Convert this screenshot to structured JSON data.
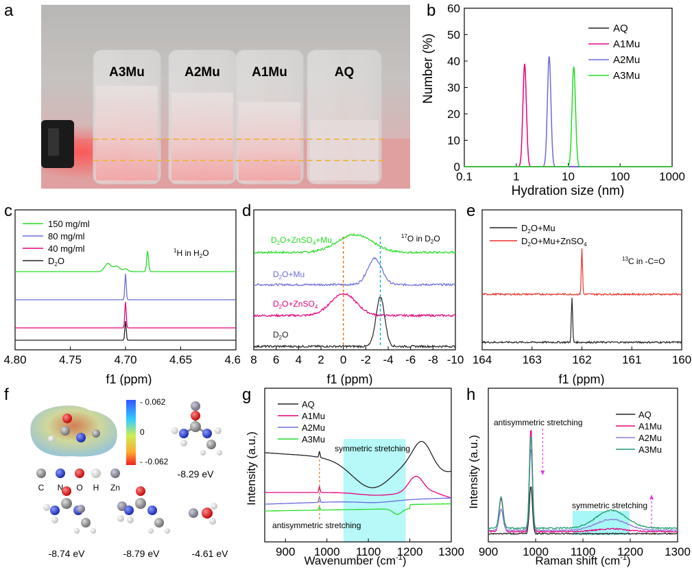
{
  "labels": {
    "a": "a",
    "b": "b",
    "c": "c",
    "d": "d",
    "e": "e",
    "f": "f",
    "g": "g",
    "h": "h"
  },
  "photo": {
    "vials": [
      "A3Mu",
      "A2Mu",
      "A1Mu",
      "AQ"
    ]
  },
  "chart_data": [
    {
      "panel": "b",
      "type": "line",
      "xlabel": "Hydration size (nm)",
      "ylabel": "Number (%)",
      "xscale": "log",
      "xlim": [
        0.1,
        1000
      ],
      "ylim": [
        0,
        60
      ],
      "xticks": [
        "0.1",
        "1",
        "10",
        "100",
        "1000"
      ],
      "yticks": [
        "0",
        "10",
        "20",
        "30",
        "40",
        "50",
        "60"
      ],
      "series": [
        {
          "name": "AQ",
          "color": "#222222",
          "peak_center": null,
          "peak_height": 0
        },
        {
          "name": "A1Mu",
          "color": "#e6007e",
          "peak_center": 1.45,
          "peak_height": 39
        },
        {
          "name": "A2Mu",
          "color": "#6a6adb",
          "peak_center": 4.3,
          "peak_height": 42
        },
        {
          "name": "A3Mu",
          "color": "#22dd22",
          "peak_center": 12.8,
          "peak_height": 38
        }
      ]
    },
    {
      "panel": "c",
      "type": "line",
      "xlabel": "f1 (ppm)",
      "xlim": [
        4.8,
        4.6
      ],
      "xticks": [
        "4.80",
        "4.75",
        "4.70",
        "4.65",
        "4.60"
      ],
      "annotation": "1H in H2O",
      "annotation_sup": "1",
      "annotation_main": "H in H",
      "annotation_sub": "2",
      "annotation_tail": "O",
      "series": [
        {
          "name": "150 mg/ml",
          "color": "#22dd22",
          "peaks": [
            4.716,
            4.68
          ]
        },
        {
          "name": "80  mg/ml",
          "color": "#6a6adb",
          "peaks": [
            4.7
          ]
        },
        {
          "name": "40  mg/ml",
          "color": "#e6007e",
          "peaks": [
            4.7
          ]
        },
        {
          "name": "D2O",
          "color": "#222222",
          "peaks": [
            4.7
          ]
        }
      ]
    },
    {
      "panel": "d",
      "type": "line",
      "xlabel": "f1 (ppm)",
      "xlim": [
        8,
        -10
      ],
      "xticks": [
        "8",
        "6",
        "4",
        "2",
        "0",
        "-2",
        "-4",
        "-6",
        "-8",
        "-10"
      ],
      "annotation_sup": "17",
      "annotation_main": "O in D",
      "annotation_sub": "2",
      "annotation_tail": "O",
      "series": [
        {
          "name": "D2O+ZnSO4+Mu",
          "color": "#22dd22",
          "peak_center": -1.0
        },
        {
          "name": "D2O+Mu",
          "color": "#6a6adb",
          "peak_center": -2.8
        },
        {
          "name": "D2O+ZnSO4",
          "color": "#e6007e",
          "peak_center": 0.0
        },
        {
          "name": "D2O",
          "color": "#222222",
          "peak_center": -3.3
        }
      ]
    },
    {
      "panel": "e",
      "type": "line",
      "xlabel": "f1 (ppm)",
      "xlim": [
        164,
        160
      ],
      "xticks": [
        "164",
        "163",
        "162",
        "161",
        "160"
      ],
      "annotation_sup": "13",
      "annotation_main": "C in -C=O",
      "series": [
        {
          "name": "D2O+Mu",
          "color": "#222222",
          "peak_center": 162.2
        },
        {
          "name": "D2O+Mu+ZnSO4",
          "color": "#e8302a",
          "peak_center": 162.0
        }
      ]
    },
    {
      "panel": "g",
      "type": "line",
      "xlabel": "Wavenumber (cm-1)",
      "ylabel": "Intensity (a.u.)",
      "xlim": [
        850,
        1300
      ],
      "xticks": [
        "900",
        "1000",
        "1100",
        "1200",
        "1300"
      ],
      "annotations": [
        "symmetric stretching",
        "antisymmetric stretching"
      ],
      "series": [
        {
          "name": "AQ",
          "color": "#222222"
        },
        {
          "name": "A1Mu",
          "color": "#e6007e"
        },
        {
          "name": "A2Mu",
          "color": "#6a6adb"
        },
        {
          "name": "A3Mu",
          "color": "#22dd22"
        }
      ]
    },
    {
      "panel": "h",
      "type": "line",
      "xlabel": "Raman shift (cm-1)",
      "ylabel": "Intensity (a.u.)",
      "xlim": [
        900,
        1300
      ],
      "xticks": [
        "900",
        "1000",
        "1100",
        "1200",
        "1300"
      ],
      "annotations": [
        "antisymmetric stretching",
        "symmetric stretching"
      ],
      "series": [
        {
          "name": "AQ",
          "color": "#222222"
        },
        {
          "name": "A1Mu",
          "color": "#e6007e"
        },
        {
          "name": "A2Mu",
          "color": "#8a7fd6"
        },
        {
          "name": "A3Mu",
          "color": "#1e9e6e"
        }
      ]
    }
  ],
  "panel_f": {
    "colorbar_ticks": [
      "- 0.062",
      "0",
      "- -0.062"
    ],
    "legend": [
      "C",
      "N",
      "O",
      "H",
      "Zn"
    ],
    "energies": [
      "-8.29 eV",
      "-8.74 eV",
      "-8.79 eV",
      "-4.61 eV"
    ]
  },
  "axis_text": {
    "b_ylabel": "Number (%)",
    "b_xlabel": "Hydration size (nm)",
    "f1": "f1 (ppm)",
    "intensity": "Intensity (a.u.)",
    "g_xlabel_main": "Wavenumber (cm",
    "g_xlabel_sup": "-1",
    "close": ")",
    "h_xlabel_main": "Raman shift (cm",
    "h_xlabel_sup": "-1",
    "sym": "symmetric stretching",
    "antisym": "antisymmetric stretching",
    "d_leg1": "D",
    "d_leg1b": "O+ZnSO",
    "d_leg1c": "+Mu",
    "d_leg2": "O+Mu",
    "d_leg3": "O+ZnSO",
    "d_leg4": "O",
    "e_leg1": "O+Mu",
    "e_leg2": "O+Mu+ZnSO",
    "c_leg4": "O"
  }
}
